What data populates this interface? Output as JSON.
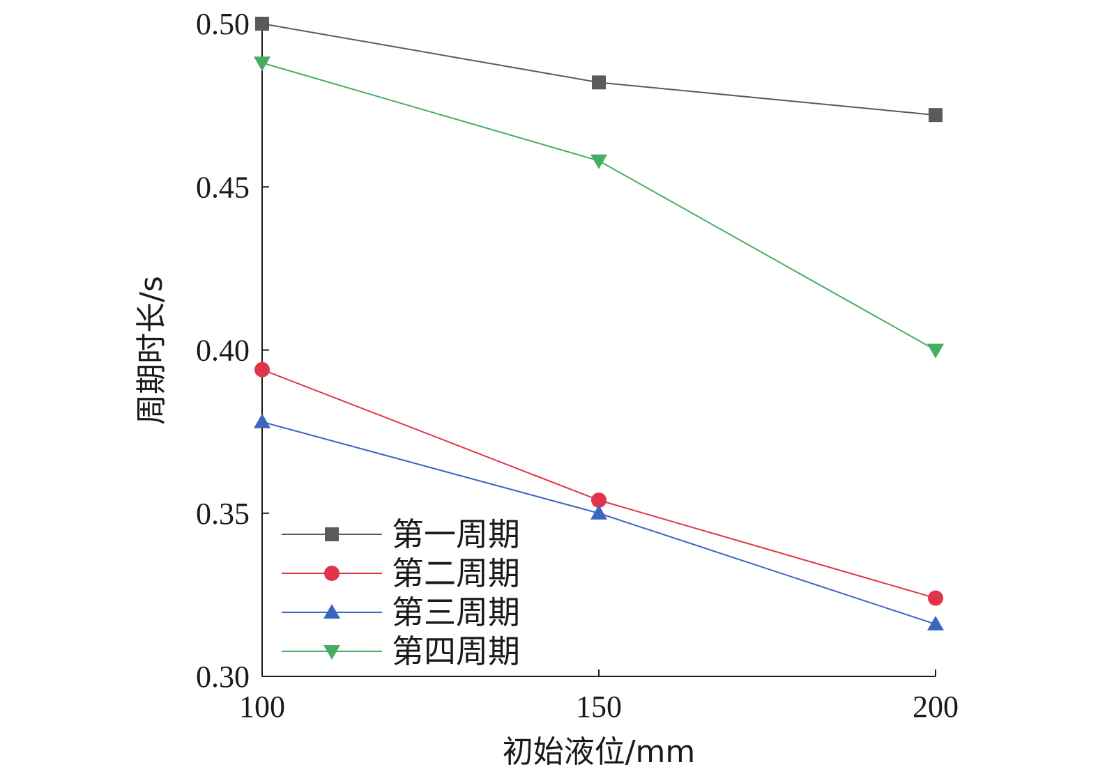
{
  "chart_data": {
    "type": "line",
    "xlabel": "初始液位/mm",
    "ylabel": "周期时长/s",
    "x": [
      100,
      150,
      200
    ],
    "xticks": [
      "100",
      "150",
      "200"
    ],
    "yticks": [
      "0.30",
      "0.35",
      "0.40",
      "0.45",
      "0.50"
    ],
    "xlim": [
      100,
      200
    ],
    "ylim": [
      0.3,
      0.5
    ],
    "grid": false,
    "legend_position": "bottom-left",
    "series": [
      {
        "name": "第一周期",
        "values": [
          0.5,
          0.482,
          0.472
        ],
        "color": "#5a5a5a",
        "marker": "square"
      },
      {
        "name": "第二周期",
        "values": [
          0.394,
          0.354,
          0.324
        ],
        "color": "#e0344a",
        "marker": "circle"
      },
      {
        "name": "第三周期",
        "values": [
          0.378,
          0.35,
          0.316
        ],
        "color": "#3a66c0",
        "marker": "triangle-up"
      },
      {
        "name": "第四周期",
        "values": [
          0.488,
          0.458,
          0.4
        ],
        "color": "#48ad62",
        "marker": "triangle-down"
      }
    ]
  }
}
